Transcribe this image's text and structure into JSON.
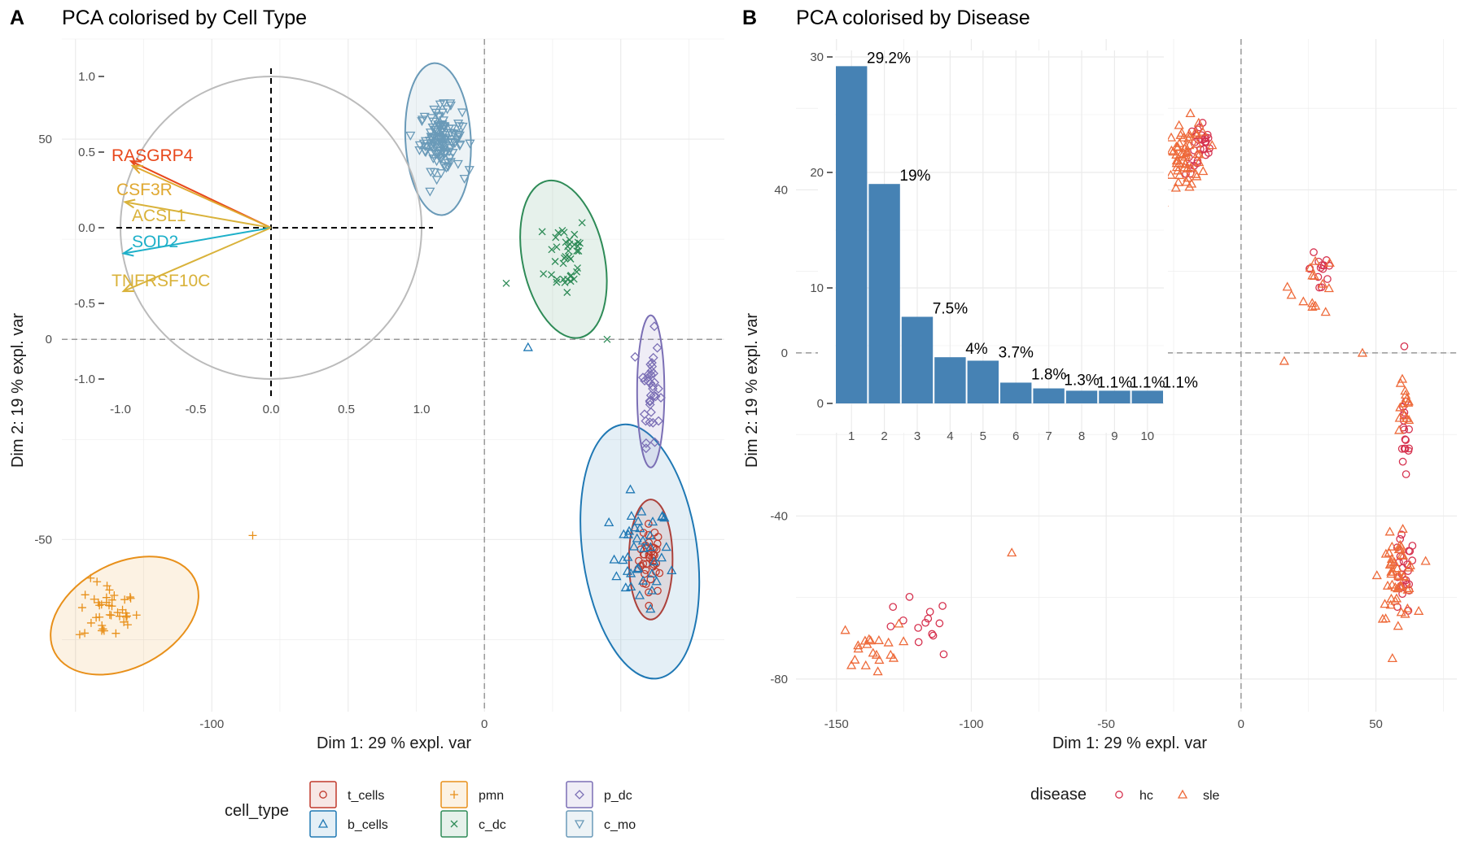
{
  "panel_a": {
    "tag": "A",
    "title": "PCA colorised by Cell Type",
    "xlabel": "Dim 1: 29 % expl. var",
    "ylabel": "Dim 2: 19 % expl. var"
  },
  "panel_b": {
    "tag": "B",
    "title": "PCA colorised by Disease",
    "xlabel": "Dim 1: 29 % expl. var",
    "ylabel": "Dim 2: 19 % expl. var"
  },
  "legend_a": {
    "title": "cell_type",
    "items": [
      {
        "label": "t_cells",
        "shape": "circle",
        "color": "#C0392B"
      },
      {
        "label": "b_cells",
        "shape": "triangle-up",
        "color": "#1F78B4"
      },
      {
        "label": "pmn",
        "shape": "plus",
        "color": "#E8901A"
      },
      {
        "label": "c_dc",
        "shape": "cross",
        "color": "#2E8B57"
      },
      {
        "label": "p_dc",
        "shape": "diamond",
        "color": "#7B6FB5"
      },
      {
        "label": "c_mo",
        "shape": "triangle-down",
        "color": "#6A9AB8"
      }
    ]
  },
  "legend_b": {
    "title": "disease",
    "items": [
      {
        "label": "hc",
        "shape": "circle",
        "color": "#D6324F"
      },
      {
        "label": "sle",
        "shape": "triangle-up",
        "color": "#EE6A3A"
      }
    ]
  },
  "colors": {
    "t_cells": "#C0392B",
    "b_cells": "#1F78B4",
    "pmn": "#E8901A",
    "c_dc": "#2E8B57",
    "p_dc": "#7B6FB5",
    "c_mo": "#6A9AB8",
    "hc": "#D6324F",
    "sle": "#EE6A3A",
    "bar": "#4682B4",
    "circle": "#BBBBBB"
  },
  "chart_data": [
    {
      "type": "scatter",
      "panel": "A",
      "xlim": [
        -155,
        88
      ],
      "ylim": [
        -93,
        75
      ],
      "x_ticks": [
        -100,
        0
      ],
      "y_ticks": [
        -50,
        0,
        50
      ],
      "groups": [
        {
          "name": "t_cells",
          "center": [
            61,
            -55
          ],
          "spread": [
            4,
            8
          ],
          "n": 40
        },
        {
          "name": "b_cells",
          "center": [
            57,
            -54
          ],
          "spread": [
            10,
            12
          ],
          "n": 40
        },
        {
          "name": "pmn",
          "center": [
            -138,
            -68
          ],
          "spread": [
            10,
            7
          ],
          "n": 40
        },
        {
          "name": "c_dc",
          "center": [
            30,
            21
          ],
          "spread": [
            7,
            10
          ],
          "n": 40
        },
        {
          "name": "p_dc",
          "center": [
            61,
            -12
          ],
          "spread": [
            3,
            12
          ],
          "n": 36
        },
        {
          "name": "c_mo",
          "center": [
            -16,
            50
          ],
          "spread": [
            7,
            7
          ],
          "n": 120
        }
      ],
      "ellipses": [
        {
          "group": "t_cells",
          "center": [
            61,
            -55
          ],
          "rx": 8,
          "ry": 15,
          "angle": 0
        },
        {
          "group": "b_cells",
          "center": [
            57,
            -53
          ],
          "rx": 21,
          "ry": 32,
          "angle": 8
        },
        {
          "group": "pmn",
          "center": [
            -132,
            -69
          ],
          "rx": 29,
          "ry": 13,
          "angle": 28
        },
        {
          "group": "c_dc",
          "center": [
            29,
            20
          ],
          "rx": 15,
          "ry": 20,
          "angle": 12
        },
        {
          "group": "p_dc",
          "center": [
            61,
            -13
          ],
          "rx": 5,
          "ry": 19,
          "angle": 0
        },
        {
          "group": "c_mo",
          "center": [
            -17,
            50
          ],
          "rx": 12,
          "ry": 19,
          "angle": 3
        }
      ],
      "inset_correlation_circle": {
        "xlim": [
          -1.0,
          1.0
        ],
        "ylim": [
          -1.0,
          1.0
        ],
        "x_ticks": [
          "-1.0",
          "-0.5",
          "0.0",
          "0.5",
          "1.0"
        ],
        "y_ticks": [
          "1.0",
          "0.5",
          "0.0",
          "-0.5",
          "-1.0"
        ],
        "arrows": [
          {
            "label": "RASGRP4",
            "x": -0.93,
            "y": 0.44,
            "color": "#E8481C"
          },
          {
            "label": "CSF3R",
            "x": -0.92,
            "y": 0.41,
            "color": "#E0A830"
          },
          {
            "label": "ACSL1",
            "x": -0.97,
            "y": 0.17,
            "color": "#D9B23A"
          },
          {
            "label": "SOD2",
            "x": -0.98,
            "y": -0.17,
            "color": "#1EB0C9"
          },
          {
            "label": "TNFRSF10C",
            "x": -0.98,
            "y": -0.42,
            "color": "#D9B23A"
          }
        ]
      }
    },
    {
      "type": "scatter",
      "panel": "B",
      "xlim": [
        -165,
        80
      ],
      "ylim": [
        -88,
        77
      ],
      "x_ticks": [
        -150,
        -100,
        -50,
        0,
        50
      ],
      "y_ticks": [
        -80,
        -40,
        0,
        40
      ],
      "groups": [
        {
          "name": "hc",
          "clusters": [
            {
              "center": [
                -15,
                50
              ],
              "spread": [
                5,
                6
              ],
              "n": 30
            },
            {
              "center": [
                30,
                21
              ],
              "spread": [
                4,
                8
              ],
              "n": 14
            },
            {
              "center": [
                61,
                -20
              ],
              "spread": [
                2,
                12
              ],
              "n": 18
            },
            {
              "center": [
                60,
                -55
              ],
              "spread": [
                4,
                9
              ],
              "n": 24
            },
            {
              "center": [
                -120,
                -68
              ],
              "spread": [
                12,
                7
              ],
              "n": 14
            }
          ]
        },
        {
          "name": "sle",
          "clusters": [
            {
              "center": [
                -20,
                48
              ],
              "spread": [
                7,
                8
              ],
              "n": 60
            },
            {
              "center": [
                27,
                17
              ],
              "spread": [
                8,
                7
              ],
              "n": 14
            },
            {
              "center": [
                58,
                -55
              ],
              "spread": [
                6,
                9
              ],
              "n": 50
            },
            {
              "center": [
                60,
                -14
              ],
              "spread": [
                3,
                8
              ],
              "n": 14
            },
            {
              "center": [
                -138,
                -72
              ],
              "spread": [
                10,
                5
              ],
              "n": 20
            }
          ]
        }
      ],
      "inset_bar": {
        "type": "bar",
        "categories": [
          "1",
          "2",
          "3",
          "4",
          "5",
          "6",
          "7",
          "8",
          "9",
          "10"
        ],
        "values": [
          29.2,
          19,
          7.5,
          4,
          3.7,
          1.8,
          1.3,
          1.1,
          1.1,
          1.1
        ],
        "labels": [
          "29.2%",
          "19%",
          "7.5%",
          "4%",
          "3.7%",
          "1.8%",
          "1.3%",
          "1.1%",
          "1.1%",
          "1.1%"
        ],
        "y_ticks": [
          0,
          10,
          20,
          30
        ],
        "ylim": [
          0,
          30
        ]
      }
    }
  ]
}
